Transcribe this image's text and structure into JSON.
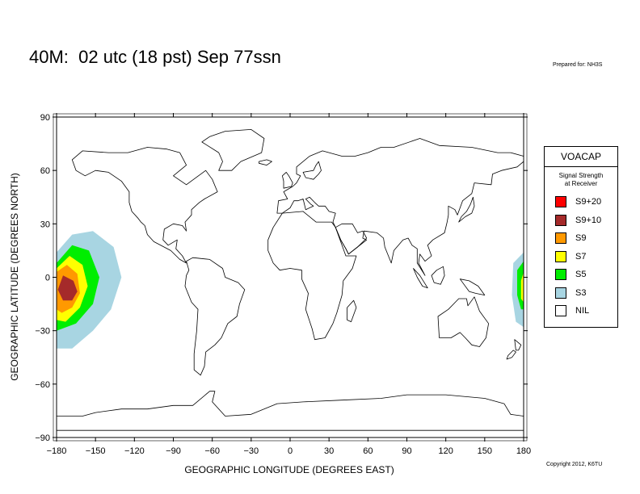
{
  "header": {
    "title": "40M:  02 utc (18 pst) Sep 77ssn",
    "prepared_for": "Prepared for: NH3S",
    "copyright": "Copyright 2012, K6TU"
  },
  "map": {
    "x_axis": {
      "label": "GEOGRAPHIC LONGITUDE (DEGREES EAST)",
      "ticks": [
        "−180",
        "−150",
        "−120",
        "−90",
        "−60",
        "−30",
        "0",
        "30",
        "60",
        "90",
        "120",
        "150",
        "180"
      ]
    },
    "y_axis": {
      "label": "GEOGRAPHIC LATITUDE (DEGREES NORTH)",
      "ticks": [
        "90",
        "60",
        "30",
        "0",
        "−30",
        "−60",
        "−90"
      ]
    }
  },
  "legend": {
    "title": "VOACAP",
    "subtitle_line1": "Signal Strength",
    "subtitle_line2": "at Receiver",
    "items": [
      {
        "label": "S9+20",
        "color": "#ff0000"
      },
      {
        "label": "S9+10",
        "color": "#a52a2a"
      },
      {
        "label": "S9",
        "color": "#ff9900"
      },
      {
        "label": "S7",
        "color": "#ffff00"
      },
      {
        "label": "S5",
        "color": "#00ee00"
      },
      {
        "label": "S3",
        "color": "#a8d5e2"
      },
      {
        "label": "NIL",
        "color": "#ffffff"
      }
    ]
  },
  "chart_data": {
    "type": "map",
    "xlim": [
      -180,
      180
    ],
    "ylim": [
      -90,
      90
    ],
    "coverage": [
      {
        "level": "S3",
        "color": "#a8d5e2",
        "points": [
          [
            -180,
            14
          ],
          [
            -168,
            24
          ],
          [
            -152,
            26
          ],
          [
            -136,
            17
          ],
          [
            -130,
            0
          ],
          [
            -138,
            -18
          ],
          [
            -152,
            -30
          ],
          [
            -168,
            -40
          ],
          [
            -180,
            -40
          ]
        ]
      },
      {
        "level": "S5",
        "color": "#00ee00",
        "points": [
          [
            -180,
            8
          ],
          [
            -168,
            18
          ],
          [
            -155,
            15
          ],
          [
            -147,
            0
          ],
          [
            -152,
            -15
          ],
          [
            -165,
            -26
          ],
          [
            -180,
            -30
          ]
        ]
      },
      {
        "level": "S7",
        "color": "#ffff00",
        "points": [
          [
            -180,
            5
          ],
          [
            -170,
            12
          ],
          [
            -160,
            7
          ],
          [
            -156,
            -5
          ],
          [
            -162,
            -17
          ],
          [
            -173,
            -25
          ],
          [
            -180,
            -24
          ]
        ]
      },
      {
        "level": "S9",
        "color": "#ff9900",
        "points": [
          [
            -180,
            3
          ],
          [
            -172,
            7
          ],
          [
            -164,
            2
          ],
          [
            -162,
            -9
          ],
          [
            -168,
            -17
          ],
          [
            -176,
            -20
          ],
          [
            -180,
            -18
          ]
        ]
      },
      {
        "level": "S9+10",
        "color": "#a52a2a",
        "points": [
          [
            -175,
            1
          ],
          [
            -167,
            -2
          ],
          [
            -164,
            -8
          ],
          [
            -168,
            -13
          ],
          [
            -175,
            -13
          ],
          [
            -179,
            -7
          ]
        ]
      },
      {
        "level": "S3",
        "color": "#a8d5e2",
        "points": [
          [
            180,
            14
          ],
          [
            172,
            8
          ],
          [
            171,
            -10
          ],
          [
            174,
            -25
          ],
          [
            180,
            -28
          ]
        ]
      },
      {
        "level": "S5",
        "color": "#00ee00",
        "points": [
          [
            180,
            9
          ],
          [
            175,
            4
          ],
          [
            175,
            -10
          ],
          [
            178,
            -18
          ],
          [
            180,
            -18
          ]
        ]
      },
      {
        "level": "S7",
        "color": "#ffff00",
        "points": [
          [
            180,
            3
          ],
          [
            178,
            -2
          ],
          [
            178,
            -12
          ],
          [
            180,
            -14
          ]
        ]
      }
    ]
  }
}
